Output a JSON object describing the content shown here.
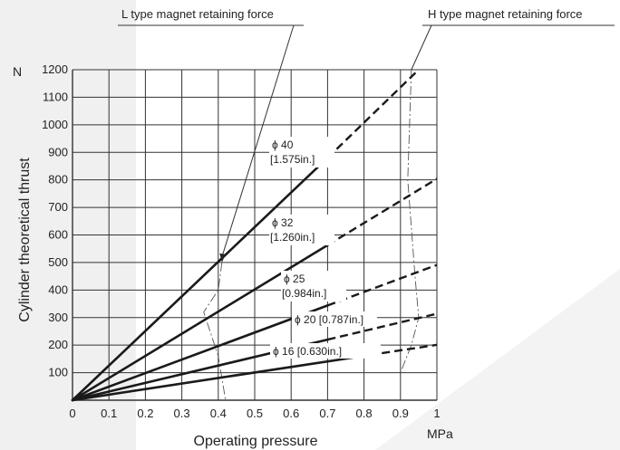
{
  "chart_data": {
    "type": "line",
    "title": "",
    "xlabel": "Operating pressure",
    "ylabel": "Cylinder theoretical thrust",
    "x_unit": "MPa",
    "y_unit": "N",
    "xlim": [
      0,
      1
    ],
    "ylim": [
      0,
      1200
    ],
    "x_ticks": [
      "0",
      "0.1",
      "0.2",
      "0.3",
      "0.4",
      "0.5",
      "0.6",
      "0.7",
      "0.8",
      "0.9",
      "1"
    ],
    "y_ticks": [
      "100",
      "200",
      "300",
      "400",
      "500",
      "600",
      "700",
      "800",
      "900",
      "1000",
      "1100",
      "1200"
    ],
    "grid": true,
    "series": [
      {
        "name": "ϕ 40 [1.575in.]",
        "label_line1": "ϕ 40",
        "label_line2": "[1.575in.]",
        "solid_to": 0.7,
        "x": [
          0,
          0.7,
          0.95
        ],
        "y": [
          0,
          880,
          1200
        ]
      },
      {
        "name": "ϕ 32 [1.260in.]",
        "label_line1": "ϕ 32",
        "label_line2": "[1.260in.]",
        "solid_to": 0.7,
        "x": [
          0,
          0.7,
          1.0
        ],
        "y": [
          0,
          563,
          804
        ]
      },
      {
        "name": "ϕ 25 [0.984in.]",
        "label_line1": "ϕ 25",
        "label_line2": "[0.984in.]",
        "solid_to": 0.7,
        "x": [
          0,
          0.7,
          1.0
        ],
        "y": [
          0,
          344,
          491
        ]
      },
      {
        "name": "ϕ 20 [0.787in.]",
        "label_line1": "ϕ 20 [0.787in.]",
        "label_line2": "",
        "solid_to": 0.7,
        "x": [
          0,
          0.7,
          1.0
        ],
        "y": [
          0,
          220,
          314
        ]
      },
      {
        "name": "ϕ 16 [0.630in.]",
        "label_line1": "ϕ 16 [0.630in.]",
        "label_line2": "",
        "solid_to": 0.78,
        "x": [
          0,
          0.78,
          1.0
        ],
        "y": [
          0,
          157,
          201
        ]
      }
    ],
    "annotations": [
      {
        "text": "L type magnet retaining force",
        "x": [
          0.41,
          0.4,
          0.36,
          0.38,
          0.4,
          0.42
        ],
        "y": [
          500,
          400,
          320,
          240,
          160,
          0
        ]
      },
      {
        "text": "H type magnet retaining force",
        "x": [
          0.93,
          0.92,
          0.94,
          0.95,
          0.93,
          0.9
        ],
        "y": [
          1200,
          800,
          450,
          300,
          200,
          100
        ]
      }
    ]
  }
}
